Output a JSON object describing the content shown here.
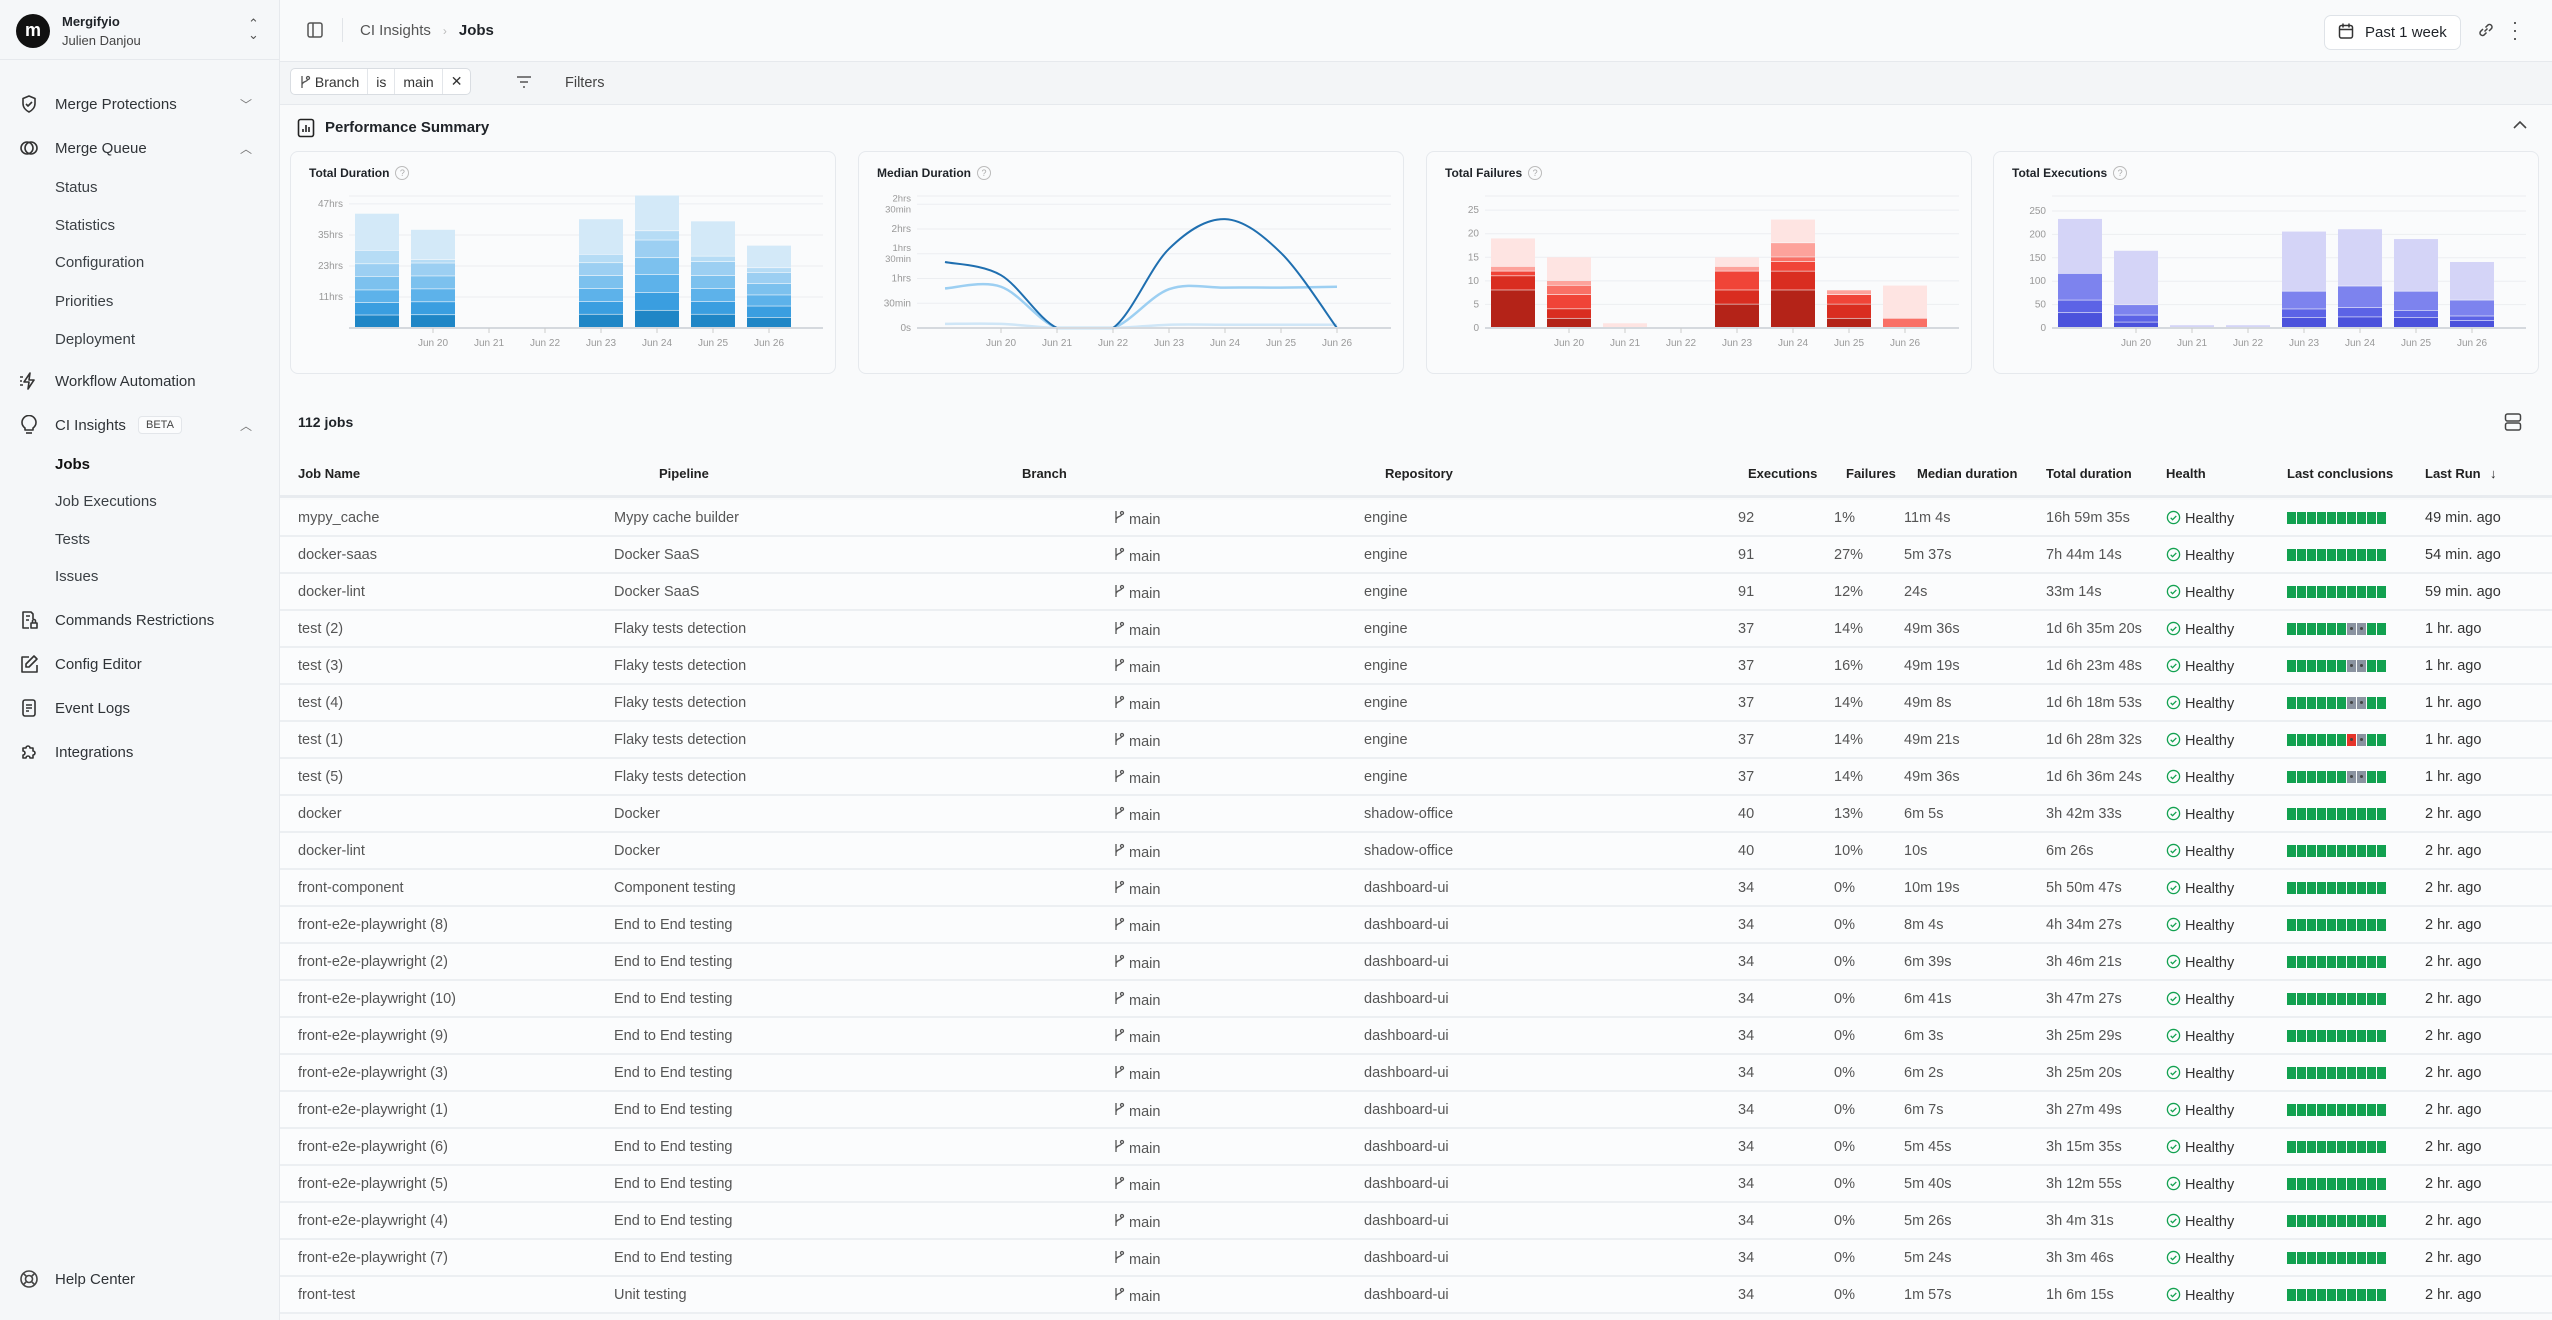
{
  "sidebar": {
    "org": "Mergifyio",
    "user": "Julien Danjou",
    "items": [
      {
        "label": "Merge Protections",
        "icon": "shield-check-icon"
      },
      {
        "label": "Merge Queue",
        "icon": "merge-queue-icon"
      },
      {
        "label": "Status"
      },
      {
        "label": "Statistics"
      },
      {
        "label": "Configuration"
      },
      {
        "label": "Priorities"
      },
      {
        "label": "Deployment"
      },
      {
        "label": "Workflow Automation",
        "icon": "lightning-icon"
      },
      {
        "label": "CI Insights",
        "icon": "lightbulb-icon",
        "badge": "BETA"
      },
      {
        "label": "Jobs",
        "active": true
      },
      {
        "label": "Job Executions"
      },
      {
        "label": "Tests"
      },
      {
        "label": "Issues"
      },
      {
        "label": "Commands Restrictions",
        "icon": "file-lock-icon"
      },
      {
        "label": "Config Editor",
        "icon": "edit-icon"
      },
      {
        "label": "Event Logs",
        "icon": "document-icon"
      },
      {
        "label": "Integrations",
        "icon": "puzzle-icon"
      }
    ],
    "help": "Help Center"
  },
  "header": {
    "breadcrumb": [
      "CI Insights",
      "Jobs"
    ],
    "date_range": "Past 1 week"
  },
  "filters": {
    "field": "Branch",
    "op": "is",
    "value": "main",
    "label": "Filters"
  },
  "summary": {
    "title": "Performance Summary"
  },
  "colors": {
    "success": "#12a150",
    "skipped": "#8a93a0",
    "failure": "#e5342a",
    "health": "#12a150"
  },
  "chart_data": [
    {
      "type": "bar",
      "stacked": true,
      "title": "Total Duration",
      "categories": [
        "",
        "Jun 20",
        "Jun 21",
        "Jun 22",
        "Jun 23",
        "Jun 24",
        "Jun 25",
        "Jun 26"
      ],
      "ylim": [
        0,
        50
      ],
      "yticks": [
        11.75,
        23.5,
        35.25,
        47
      ],
      "ytick_labels": [
        "11hrs",
        "23hrs",
        "35hrs",
        "47hrs"
      ],
      "grid": true,
      "series": [
        {
          "color": "#1f86c6",
          "values": [
            4.8,
            4.9,
            0,
            0,
            5.1,
            6.6,
            5.1,
            3.9
          ]
        },
        {
          "color": "#3a9ee0",
          "values": [
            4.7,
            4.9,
            0,
            0,
            4.8,
            6.7,
            4.8,
            4.3
          ]
        },
        {
          "color": "#5db2ea",
          "values": [
            4.8,
            4.9,
            0,
            0,
            4.9,
            6.8,
            4.9,
            4.2
          ]
        },
        {
          "color": "#7cc1ee",
          "values": [
            5.1,
            4.9,
            0,
            0,
            4.9,
            6.4,
            4.9,
            4.3
          ]
        },
        {
          "color": "#9ccff2",
          "values": [
            4.8,
            4.9,
            0,
            0,
            4.9,
            6.7,
            5.3,
            4.2
          ]
        },
        {
          "color": "#b6dcf5",
          "values": [
            5.1,
            1.3,
            0,
            0,
            3.2,
            3.5,
            2.1,
            1.8
          ]
        },
        {
          "color": "#d3e9f8",
          "values": [
            14.0,
            11.4,
            0,
            0,
            13.4,
            13.5,
            13.3,
            8.5
          ]
        }
      ]
    },
    {
      "type": "line",
      "title": "Median Duration",
      "categories": [
        "",
        "Jun 20",
        "Jun 21",
        "Jun 22",
        "Jun 23",
        "Jun 24",
        "Jun 25",
        "Jun 26"
      ],
      "ylim": [
        0,
        160
      ],
      "yticks": [
        0,
        30,
        60,
        90,
        120,
        150
      ],
      "ytick_labels": [
        "0s",
        "30min",
        "1hrs",
        "1hrs 30min",
        "2hrs",
        "2hrs 30min"
      ],
      "grid": true,
      "series": [
        {
          "color": "#1f6fb0",
          "values": [
            80,
            64,
            0,
            0,
            96,
            132,
            91,
            0
          ]
        },
        {
          "color": "#9ccff2",
          "values": [
            48,
            50,
            0,
            0,
            47,
            49,
            49,
            50
          ]
        },
        {
          "color": "#cfe6f7",
          "values": [
            5,
            5,
            0,
            0,
            4,
            4,
            4,
            4
          ]
        }
      ]
    },
    {
      "type": "bar",
      "stacked": true,
      "title": "Total Failures",
      "categories": [
        "",
        "Jun 20",
        "Jun 21",
        "Jun 22",
        "Jun 23",
        "Jun 24",
        "Jun 25",
        "Jun 26"
      ],
      "ylim": [
        0,
        28
      ],
      "yticks": [
        0,
        5,
        10,
        15,
        20,
        25
      ],
      "ytick_labels": [
        "0",
        "5",
        "10",
        "15",
        "20",
        "25"
      ],
      "grid": true,
      "series": [
        {
          "color": "#b42318",
          "values": [
            8,
            2,
            0,
            0,
            5,
            8,
            2,
            0
          ]
        },
        {
          "color": "#d92d20",
          "values": [
            3,
            2,
            0,
            0,
            3,
            4,
            3,
            0
          ]
        },
        {
          "color": "#f04438",
          "values": [
            1,
            3,
            0,
            0,
            4,
            2,
            2,
            0
          ]
        },
        {
          "color": "#f97066",
          "values": [
            0,
            2,
            0,
            0,
            0,
            1,
            0,
            2
          ]
        },
        {
          "color": "#fda29b",
          "values": [
            1,
            1,
            0,
            0,
            1,
            3,
            1,
            0
          ]
        },
        {
          "color": "#fee4e2",
          "values": [
            6,
            5,
            1,
            0,
            2,
            5,
            0,
            7
          ]
        }
      ]
    },
    {
      "type": "bar",
      "stacked": true,
      "title": "Total Executions",
      "categories": [
        "",
        "Jun 20",
        "Jun 21",
        "Jun 22",
        "Jun 23",
        "Jun 24",
        "Jun 25",
        "Jun 26"
      ],
      "ylim": [
        0,
        282
      ],
      "yticks": [
        0,
        50,
        100,
        150,
        200,
        250
      ],
      "ytick_labels": [
        "0",
        "50",
        "100",
        "150",
        "200",
        "250"
      ],
      "grid": true,
      "series": [
        {
          "color": "#4b52dc",
          "values": [
            32,
            12,
            0,
            0,
            22,
            23,
            22,
            15
          ]
        },
        {
          "color": "#5c63e6",
          "values": [
            27,
            15,
            0,
            0,
            18,
            20,
            15,
            10
          ]
        },
        {
          "color": "#7d83ee",
          "values": [
            57,
            22,
            0,
            0,
            38,
            46,
            41,
            34
          ]
        },
        {
          "color": "#d4d4f7",
          "values": [
            117,
            116,
            6,
            6,
            128,
            122,
            112,
            82
          ]
        }
      ]
    }
  ],
  "table": {
    "count": "112 jobs",
    "columns": [
      "Job Name",
      "Pipeline",
      "Branch",
      "Repository",
      "Executions",
      "Failures",
      "Median duration",
      "Total duration",
      "Health",
      "Last conclusions",
      "Last Run"
    ],
    "rows": [
      [
        "mypy_cache",
        "Mypy cache builder",
        "main",
        "engine",
        "92",
        "1%",
        "11m 4s",
        "16h 59m 35s",
        "Healthy",
        "ssssssssss",
        "49 min. ago"
      ],
      [
        "docker-saas",
        "Docker SaaS",
        "main",
        "engine",
        "91",
        "27%",
        "5m 37s",
        "7h 44m 14s",
        "Healthy",
        "ssssssssss",
        "54 min. ago"
      ],
      [
        "docker-lint",
        "Docker SaaS",
        "main",
        "engine",
        "91",
        "12%",
        "24s",
        "33m 14s",
        "Healthy",
        "ssssssssss",
        "59 min. ago"
      ],
      [
        "test (2)",
        "Flaky tests detection",
        "main",
        "engine",
        "37",
        "14%",
        "49m 36s",
        "1d 6h 35m 20s",
        "Healthy",
        "ssssssxxss",
        "1 hr. ago"
      ],
      [
        "test (3)",
        "Flaky tests detection",
        "main",
        "engine",
        "37",
        "16%",
        "49m 19s",
        "1d 6h 23m 48s",
        "Healthy",
        "ssssssxxss",
        "1 hr. ago"
      ],
      [
        "test (4)",
        "Flaky tests detection",
        "main",
        "engine",
        "37",
        "14%",
        "49m 8s",
        "1d 6h 18m 53s",
        "Healthy",
        "ssssssxxss",
        "1 hr. ago"
      ],
      [
        "test (1)",
        "Flaky tests detection",
        "main",
        "engine",
        "37",
        "14%",
        "49m 21s",
        "1d 6h 28m 32s",
        "Healthy",
        "ssssssfxss",
        "1 hr. ago"
      ],
      [
        "test (5)",
        "Flaky tests detection",
        "main",
        "engine",
        "37",
        "14%",
        "49m 36s",
        "1d 6h 36m 24s",
        "Healthy",
        "ssssssxxss",
        "1 hr. ago"
      ],
      [
        "docker",
        "Docker",
        "main",
        "shadow-office",
        "40",
        "13%",
        "6m 5s",
        "3h 42m 33s",
        "Healthy",
        "ssssssssss",
        "2 hr. ago"
      ],
      [
        "docker-lint",
        "Docker",
        "main",
        "shadow-office",
        "40",
        "10%",
        "10s",
        "6m 26s",
        "Healthy",
        "ssssssssss",
        "2 hr. ago"
      ],
      [
        "front-component",
        "Component testing",
        "main",
        "dashboard-ui",
        "34",
        "0%",
        "10m 19s",
        "5h 50m 47s",
        "Healthy",
        "ssssssssss",
        "2 hr. ago"
      ],
      [
        "front-e2e-playwright (8)",
        "End to End testing",
        "main",
        "dashboard-ui",
        "34",
        "0%",
        "8m 4s",
        "4h 34m 27s",
        "Healthy",
        "ssssssssss",
        "2 hr. ago"
      ],
      [
        "front-e2e-playwright (2)",
        "End to End testing",
        "main",
        "dashboard-ui",
        "34",
        "0%",
        "6m 39s",
        "3h 46m 21s",
        "Healthy",
        "ssssssssss",
        "2 hr. ago"
      ],
      [
        "front-e2e-playwright (10)",
        "End to End testing",
        "main",
        "dashboard-ui",
        "34",
        "0%",
        "6m 41s",
        "3h 47m 27s",
        "Healthy",
        "ssssssssss",
        "2 hr. ago"
      ],
      [
        "front-e2e-playwright (9)",
        "End to End testing",
        "main",
        "dashboard-ui",
        "34",
        "0%",
        "6m 3s",
        "3h 25m 29s",
        "Healthy",
        "ssssssssss",
        "2 hr. ago"
      ],
      [
        "front-e2e-playwright (3)",
        "End to End testing",
        "main",
        "dashboard-ui",
        "34",
        "0%",
        "6m 2s",
        "3h 25m 20s",
        "Healthy",
        "ssssssssss",
        "2 hr. ago"
      ],
      [
        "front-e2e-playwright (1)",
        "End to End testing",
        "main",
        "dashboard-ui",
        "34",
        "0%",
        "6m 7s",
        "3h 27m 49s",
        "Healthy",
        "ssssssssss",
        "2 hr. ago"
      ],
      [
        "front-e2e-playwright (6)",
        "End to End testing",
        "main",
        "dashboard-ui",
        "34",
        "0%",
        "5m 45s",
        "3h 15m 35s",
        "Healthy",
        "ssssssssss",
        "2 hr. ago"
      ],
      [
        "front-e2e-playwright (5)",
        "End to End testing",
        "main",
        "dashboard-ui",
        "34",
        "0%",
        "5m 40s",
        "3h 12m 55s",
        "Healthy",
        "ssssssssss",
        "2 hr. ago"
      ],
      [
        "front-e2e-playwright (4)",
        "End to End testing",
        "main",
        "dashboard-ui",
        "34",
        "0%",
        "5m 26s",
        "3h 4m 31s",
        "Healthy",
        "ssssssssss",
        "2 hr. ago"
      ],
      [
        "front-e2e-playwright (7)",
        "End to End testing",
        "main",
        "dashboard-ui",
        "34",
        "0%",
        "5m 24s",
        "3h 3m 46s",
        "Healthy",
        "ssssssssss",
        "2 hr. ago"
      ],
      [
        "front-test",
        "Unit testing",
        "main",
        "dashboard-ui",
        "34",
        "0%",
        "1m 57s",
        "1h 6m 15s",
        "Healthy",
        "ssssssssss",
        "2 hr. ago"
      ]
    ]
  }
}
